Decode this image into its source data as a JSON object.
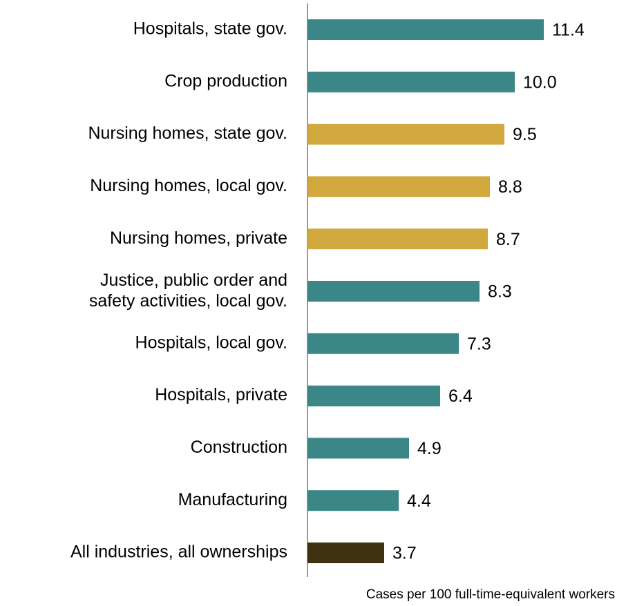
{
  "chart_data": {
    "type": "hbar",
    "categories": [
      "Hospitals, state gov.",
      "Crop production",
      "Nursing homes, state gov.",
      "Nursing homes, local gov.",
      "Nursing homes, private",
      "Justice, public order and\nsafety activities, local gov.",
      "Hospitals, local gov.",
      "Hospitals, private",
      "Construction",
      "Manufacturing",
      "All industries, all ownerships"
    ],
    "values": [
      11.4,
      10.0,
      9.5,
      8.8,
      8.7,
      8.3,
      7.3,
      6.4,
      4.9,
      4.4,
      3.7
    ],
    "value_labels": [
      "11.4",
      "10.0",
      "9.5",
      "8.8",
      "8.7",
      "8.3",
      "7.3",
      "6.4",
      "4.9",
      "4.4",
      "3.7"
    ],
    "colors": [
      "#3b8686",
      "#3b8686",
      "#d1a83e",
      "#d1a83e",
      "#d1a83e",
      "#3b8686",
      "#3b8686",
      "#3b8686",
      "#3b8686",
      "#3b8686",
      "#3f3210"
    ],
    "xlabel": "Cases per 100 full-time-equivalent workers",
    "xlim": [
      0,
      15
    ]
  }
}
